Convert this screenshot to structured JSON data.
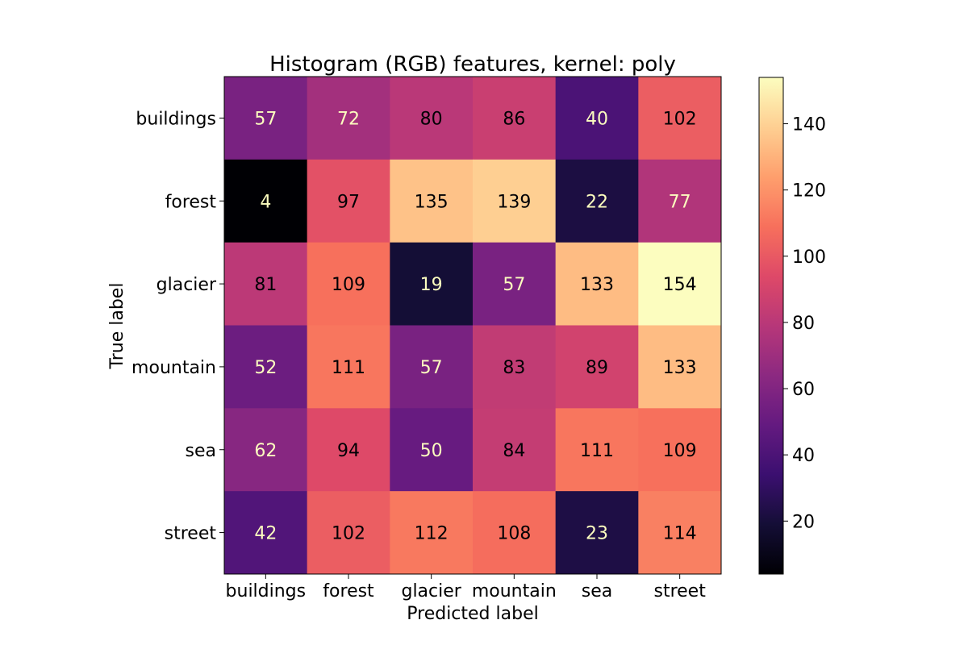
{
  "chart_data": {
    "type": "heatmap",
    "title": "Histogram (RGB) features, kernel: poly",
    "xlabel": "Predicted label",
    "ylabel": "True label",
    "x_categories": [
      "buildings",
      "forest",
      "glacier",
      "mountain",
      "sea",
      "street"
    ],
    "y_categories": [
      "buildings",
      "forest",
      "glacier",
      "mountain",
      "sea",
      "street"
    ],
    "values": [
      [
        57,
        72,
        80,
        86,
        40,
        102
      ],
      [
        4,
        97,
        135,
        139,
        22,
        77
      ],
      [
        81,
        109,
        19,
        57,
        133,
        154
      ],
      [
        52,
        111,
        57,
        83,
        89,
        133
      ],
      [
        62,
        94,
        50,
        84,
        111,
        109
      ],
      [
        42,
        102,
        112,
        108,
        23,
        114
      ]
    ],
    "colormap": "magma",
    "vmin": 4,
    "vmax": 154,
    "colorbar_ticks": [
      20,
      40,
      60,
      80,
      100,
      120,
      140
    ],
    "grid": false
  }
}
